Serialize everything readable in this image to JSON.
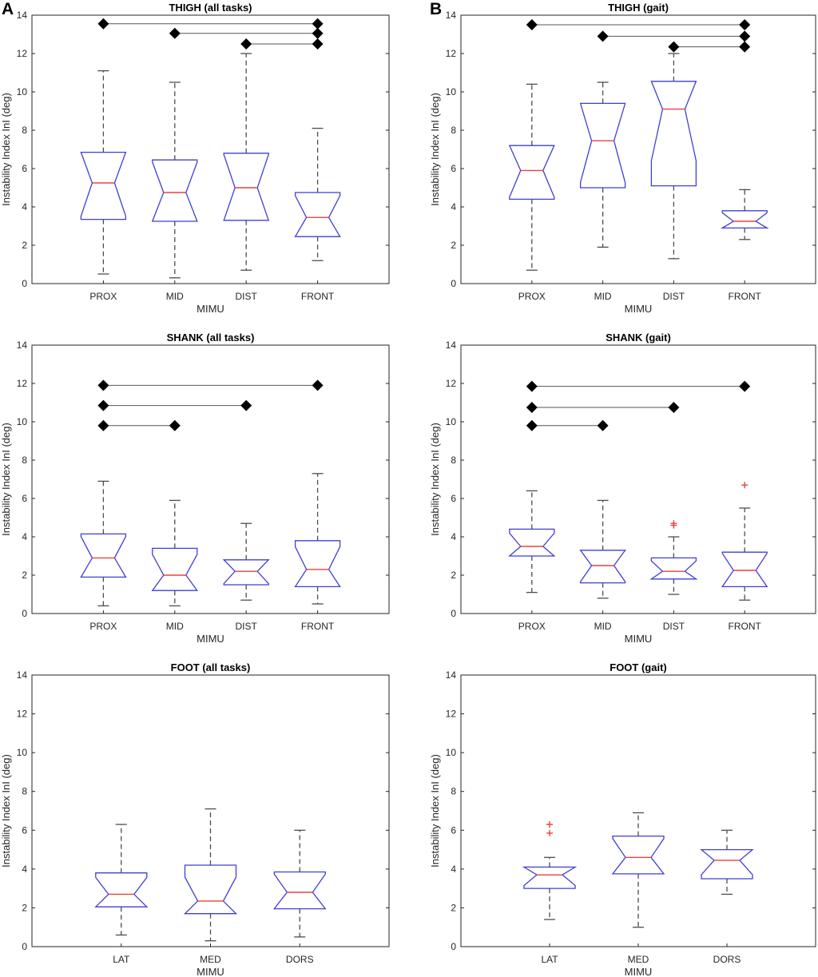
{
  "panel_labels": {
    "A": "A",
    "B": "B"
  },
  "chart_data": [
    {
      "type": "boxplot",
      "title": "THIGH (all tasks)",
      "xlabel": "MIMU",
      "ylabel": "Instability Index InI (deg)",
      "ylim": [
        0,
        14
      ],
      "yticks": [
        0,
        2,
        4,
        6,
        8,
        10,
        12,
        14
      ],
      "categories": [
        "PROX",
        "MID",
        "DIST",
        "FRONT"
      ],
      "boxes": [
        {
          "whisker_low": 0.5,
          "q1": 3.35,
          "median": 5.25,
          "q3": 6.85,
          "whisker_high": 11.1,
          "outliers": []
        },
        {
          "whisker_low": 0.3,
          "q1": 3.25,
          "median": 4.75,
          "q3": 6.45,
          "whisker_high": 10.5,
          "outliers": []
        },
        {
          "whisker_low": 0.7,
          "q1": 3.3,
          "median": 5.0,
          "q3": 6.8,
          "whisker_high": 12.0,
          "outliers": []
        },
        {
          "whisker_low": 1.2,
          "q1": 2.45,
          "median": 3.45,
          "q3": 4.75,
          "whisker_high": 8.1,
          "outliers": []
        }
      ],
      "significance": [
        {
          "from": "PROX",
          "to": "FRONT",
          "y": 13.55
        },
        {
          "from": "MID",
          "to": "FRONT",
          "y": 13.05
        },
        {
          "from": "DIST",
          "to": "FRONT",
          "y": 12.5
        }
      ]
    },
    {
      "type": "boxplot",
      "title": "THIGH (gait)",
      "xlabel": "MIMU",
      "ylabel": "Instability Index InI (deg)",
      "ylim": [
        0,
        14
      ],
      "yticks": [
        0,
        2,
        4,
        6,
        8,
        10,
        12,
        14
      ],
      "categories": [
        "PROX",
        "MID",
        "DIST",
        "FRONT"
      ],
      "boxes": [
        {
          "whisker_low": 0.7,
          "q1": 4.4,
          "median": 5.9,
          "q3": 7.2,
          "whisker_high": 10.4,
          "outliers": []
        },
        {
          "whisker_low": 1.9,
          "q1": 5.0,
          "median": 7.45,
          "q3": 9.4,
          "whisker_high": 10.5,
          "outliers": []
        },
        {
          "whisker_low": 1.3,
          "q1": 5.1,
          "median": 9.1,
          "q3": 10.55,
          "whisker_high": 12.0,
          "outliers": []
        },
        {
          "whisker_low": 2.3,
          "q1": 2.9,
          "median": 3.25,
          "q3": 3.8,
          "whisker_high": 4.9,
          "outliers": []
        }
      ],
      "significance": [
        {
          "from": "PROX",
          "to": "FRONT",
          "y": 13.5
        },
        {
          "from": "MID",
          "to": "FRONT",
          "y": 12.9
        },
        {
          "from": "DIST",
          "to": "FRONT",
          "y": 12.35
        }
      ]
    },
    {
      "type": "boxplot",
      "title": "SHANK (all tasks)",
      "xlabel": "MIMU",
      "ylabel": "Instability Index InI (deg)",
      "ylim": [
        0,
        14
      ],
      "yticks": [
        0,
        2,
        4,
        6,
        8,
        10,
        12,
        14
      ],
      "categories": [
        "PROX",
        "MID",
        "DIST",
        "FRONT"
      ],
      "boxes": [
        {
          "whisker_low": 0.4,
          "q1": 1.9,
          "median": 2.9,
          "q3": 4.15,
          "whisker_high": 6.9,
          "outliers": []
        },
        {
          "whisker_low": 0.4,
          "q1": 1.2,
          "median": 2.0,
          "q3": 3.4,
          "whisker_high": 5.9,
          "outliers": []
        },
        {
          "whisker_low": 0.7,
          "q1": 1.5,
          "median": 2.2,
          "q3": 2.8,
          "whisker_high": 4.7,
          "outliers": []
        },
        {
          "whisker_low": 0.5,
          "q1": 1.4,
          "median": 2.3,
          "q3": 3.8,
          "whisker_high": 7.3,
          "outliers": []
        }
      ],
      "significance": [
        {
          "from": "PROX",
          "to": "FRONT",
          "y": 11.9
        },
        {
          "from": "PROX",
          "to": "DIST",
          "y": 10.85
        },
        {
          "from": "PROX",
          "to": "MID",
          "y": 9.8
        }
      ]
    },
    {
      "type": "boxplot",
      "title": "SHANK (gait)",
      "xlabel": "MIMU",
      "ylabel": "Instability Index InI (deg)",
      "ylim": [
        0,
        14
      ],
      "yticks": [
        0,
        2,
        4,
        6,
        8,
        10,
        12,
        14
      ],
      "categories": [
        "PROX",
        "MID",
        "DIST",
        "FRONT"
      ],
      "boxes": [
        {
          "whisker_low": 1.1,
          "q1": 3.0,
          "median": 3.5,
          "q3": 4.4,
          "whisker_high": 6.4,
          "outliers": []
        },
        {
          "whisker_low": 0.8,
          "q1": 1.6,
          "median": 2.5,
          "q3": 3.3,
          "whisker_high": 5.9,
          "outliers": []
        },
        {
          "whisker_low": 1.0,
          "q1": 1.8,
          "median": 2.2,
          "q3": 2.9,
          "whisker_high": 4.0,
          "outliers": [
            4.6,
            4.7
          ]
        },
        {
          "whisker_low": 0.7,
          "q1": 1.4,
          "median": 2.25,
          "q3": 3.2,
          "whisker_high": 5.5,
          "outliers": [
            6.7
          ]
        }
      ],
      "significance": [
        {
          "from": "PROX",
          "to": "FRONT",
          "y": 11.85
        },
        {
          "from": "PROX",
          "to": "DIST",
          "y": 10.75
        },
        {
          "from": "PROX",
          "to": "MID",
          "y": 9.8
        }
      ]
    },
    {
      "type": "boxplot",
      "title": "FOOT (all tasks)",
      "xlabel": "MIMU",
      "ylabel": "Instability Index InI (deg)",
      "ylim": [
        0,
        14
      ],
      "yticks": [
        0,
        2,
        4,
        6,
        8,
        10,
        12,
        14
      ],
      "categories": [
        "LAT",
        "MED",
        "DORS"
      ],
      "boxes": [
        {
          "whisker_low": 0.6,
          "q1": 2.05,
          "median": 2.7,
          "q3": 3.8,
          "whisker_high": 6.3,
          "outliers": []
        },
        {
          "whisker_low": 0.3,
          "q1": 1.7,
          "median": 2.35,
          "q3": 4.2,
          "whisker_high": 7.1,
          "outliers": []
        },
        {
          "whisker_low": 0.5,
          "q1": 1.95,
          "median": 2.8,
          "q3": 3.85,
          "whisker_high": 6.0,
          "outliers": []
        }
      ],
      "significance": []
    },
    {
      "type": "boxplot",
      "title": "FOOT (gait)",
      "xlabel": "MIMU",
      "ylabel": "Instability Index InI (deg)",
      "ylim": [
        0,
        14
      ],
      "yticks": [
        0,
        2,
        4,
        6,
        8,
        10,
        12,
        14
      ],
      "categories": [
        "LAT",
        "MED",
        "DORS"
      ],
      "boxes": [
        {
          "whisker_low": 1.4,
          "q1": 3.0,
          "median": 3.7,
          "q3": 4.1,
          "whisker_high": 4.6,
          "outliers": [
            5.85,
            6.3
          ]
        },
        {
          "whisker_low": 1.0,
          "q1": 3.75,
          "median": 4.6,
          "q3": 5.7,
          "whisker_high": 6.9,
          "outliers": []
        },
        {
          "whisker_low": 2.7,
          "q1": 3.5,
          "median": 4.45,
          "q3": 5.0,
          "whisker_high": 6.0,
          "outliers": []
        }
      ],
      "significance": []
    }
  ],
  "colors": {
    "box": "#3f3fd6",
    "median": "#e8423f",
    "whisker": "#4d4d4d",
    "outlier": "#e8423f",
    "sig": "#000000",
    "axis": "#262626"
  }
}
